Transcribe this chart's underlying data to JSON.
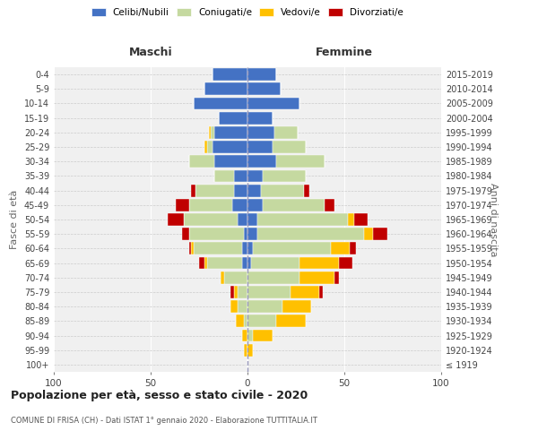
{
  "age_groups": [
    "100+",
    "95-99",
    "90-94",
    "85-89",
    "80-84",
    "75-79",
    "70-74",
    "65-69",
    "60-64",
    "55-59",
    "50-54",
    "45-49",
    "40-44",
    "35-39",
    "30-34",
    "25-29",
    "20-24",
    "15-19",
    "10-14",
    "5-9",
    "0-4"
  ],
  "birth_years": [
    "≤ 1919",
    "1920-1924",
    "1925-1929",
    "1930-1934",
    "1935-1939",
    "1940-1944",
    "1945-1949",
    "1950-1954",
    "1955-1959",
    "1960-1964",
    "1965-1969",
    "1970-1974",
    "1975-1979",
    "1980-1984",
    "1985-1989",
    "1990-1994",
    "1995-1999",
    "2000-2004",
    "2005-2009",
    "2010-2014",
    "2015-2019"
  ],
  "colors": {
    "celibi": "#4472c4",
    "coniugati": "#c5d9a0",
    "vedovi": "#ffc000",
    "divorziati": "#c00000"
  },
  "males": {
    "celibi": [
      0,
      0,
      0,
      0,
      0,
      0,
      0,
      3,
      3,
      2,
      5,
      8,
      7,
      7,
      17,
      18,
      17,
      15,
      28,
      22,
      18
    ],
    "coniugati": [
      0,
      0,
      0,
      2,
      5,
      5,
      12,
      18,
      25,
      28,
      28,
      22,
      20,
      10,
      13,
      3,
      2,
      0,
      0,
      0,
      0
    ],
    "vedovi": [
      0,
      2,
      3,
      4,
      4,
      2,
      2,
      1,
      1,
      0,
      0,
      0,
      0,
      0,
      0,
      1,
      1,
      0,
      0,
      0,
      0
    ],
    "divorziati": [
      0,
      0,
      0,
      0,
      0,
      2,
      0,
      3,
      1,
      4,
      8,
      7,
      2,
      0,
      0,
      0,
      0,
      0,
      0,
      0,
      0
    ]
  },
  "females": {
    "nubili": [
      0,
      0,
      0,
      0,
      0,
      0,
      0,
      2,
      3,
      5,
      5,
      8,
      7,
      8,
      15,
      13,
      14,
      13,
      27,
      17,
      15
    ],
    "coniugate": [
      0,
      0,
      3,
      15,
      18,
      22,
      27,
      25,
      40,
      55,
      47,
      32,
      22,
      22,
      25,
      17,
      12,
      0,
      0,
      0,
      0
    ],
    "vedove": [
      0,
      3,
      10,
      15,
      15,
      15,
      18,
      20,
      10,
      5,
      3,
      0,
      0,
      0,
      0,
      0,
      0,
      0,
      0,
      0,
      0
    ],
    "divorziate": [
      0,
      0,
      0,
      0,
      0,
      2,
      2,
      7,
      3,
      7,
      7,
      5,
      3,
      0,
      0,
      0,
      0,
      0,
      0,
      0,
      0
    ]
  },
  "xlim": [
    -100,
    100
  ],
  "xticks": [
    -100,
    -50,
    0,
    50,
    100
  ],
  "xticklabels": [
    "100",
    "50",
    "0",
    "50",
    "100"
  ],
  "title": "Popolazione per età, sesso e stato civile - 2020",
  "subtitle": "COMUNE DI FRISA (CH) - Dati ISTAT 1° gennaio 2020 - Elaborazione TUTTITALIA.IT",
  "ylabel_left": "Fasce di età",
  "ylabel_right": "Anni di nascita",
  "header_maschi": "Maschi",
  "header_femmine": "Femmine",
  "legend_labels": [
    "Celibi/Nubili",
    "Coniugati/e",
    "Vedovi/e",
    "Divorziati/e"
  ],
  "bg_color": "#ffffff",
  "plot_bg_color": "#f0f0f0",
  "bar_height": 0.85
}
